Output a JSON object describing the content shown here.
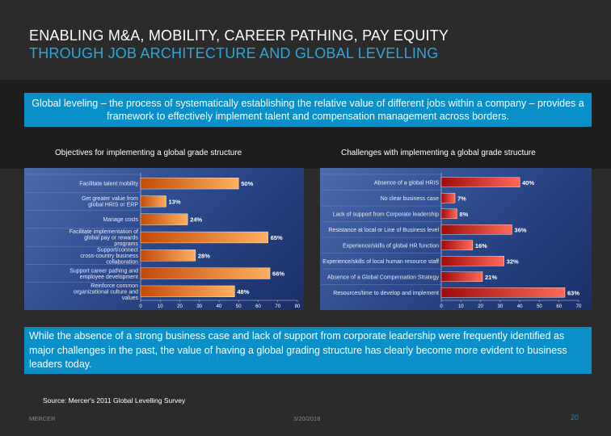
{
  "title": {
    "line1": "ENABLING M&A, MOBILITY, CAREER PATHING, PAY EQUITY",
    "line2": "THROUGH JOB ARCHITECTURE AND GLOBAL  LEVELLING"
  },
  "intro": "Global leveling – the process of systematically establishing the relative value of different jobs within a company – provides a framework to effectively implement talent and compensation management across borders.",
  "colors": {
    "accent": "#0a8fc9",
    "title_blue": "#2aa7dd",
    "bar_orange": "#f08a24",
    "bar_red": "#d42020",
    "chart_bg": "#2c4a8c"
  },
  "chart_data": [
    {
      "type": "bar",
      "orientation": "horizontal",
      "title": "Objectives for implementing a global grade structure",
      "categories": [
        "Facilitate talent mobility",
        "Get greater value from global HRIS or ERP",
        "Manage costs",
        "Facilitate implementation of global pay or rewards programs",
        "Support/connect cross-country business collaboration",
        "Support career pathing and employee development",
        "Reinforce common organizational culture and values"
      ],
      "values": [
        50,
        13,
        24,
        65,
        28,
        66,
        48
      ],
      "value_labels": [
        "50%",
        "13%",
        "24%",
        "65%",
        "28%",
        "66%",
        "48%"
      ],
      "xticks": [
        "0",
        "10",
        "20",
        "30",
        "40",
        "50",
        "60",
        "70",
        "80"
      ],
      "xlim": [
        0,
        80
      ],
      "grid": false
    },
    {
      "type": "bar",
      "orientation": "horizontal",
      "title": "Challenges with implementing a global grade structure",
      "categories": [
        "Absence of a global HRIS",
        "No clear business case",
        "Lack of support from Corporate leadership",
        "Resistance at local or Line of Business level",
        "Experience/skills of global HR function",
        "Experience/skills of local human resource staff",
        "Absence of a Global Compensation Strategy",
        "Resources/time to develop and implement"
      ],
      "values": [
        40,
        7,
        8,
        36,
        16,
        32,
        21,
        63
      ],
      "value_labels": [
        "40%",
        "7%",
        "8%",
        "36%",
        "16%",
        "32%",
        "21%",
        "63%"
      ],
      "xticks": [
        "0",
        "10",
        "20",
        "30",
        "40",
        "50",
        "60",
        "70"
      ],
      "xlim": [
        0,
        70
      ],
      "grid": false
    }
  ],
  "summary": "While the absence of a strong business case and lack of support from corporate leadership were frequently identified as major challenges in the past, the value of having a global grading structure has clearly become more evident to business leaders today.",
  "source": "Source: Mercer's 2011 Global Levelling Survey",
  "footer": {
    "brand": "MERCER",
    "date": "3/20/2018",
    "page": "20"
  }
}
